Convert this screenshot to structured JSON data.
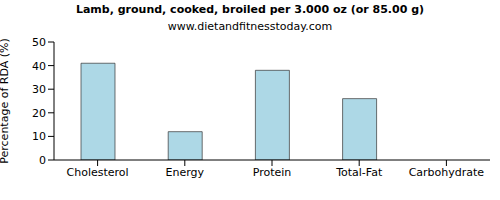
{
  "chart_data": {
    "type": "bar",
    "title": "Lamb, ground, cooked, broiled per 3.000 oz (or 85.00 g)",
    "subtitle": "www.dietandfitnesstoday.com",
    "y_label": "Percentage of RDA (%)",
    "categories": [
      "Cholesterol",
      "Energy",
      "Protein",
      "Total-Fat",
      "Carbohydrate"
    ],
    "values": [
      41,
      12,
      38,
      26,
      0
    ],
    "color": "#add8e6",
    "ylim": [
      0,
      50
    ],
    "yticks": [
      0,
      10,
      20,
      30,
      40,
      50
    ],
    "grid": false
  }
}
